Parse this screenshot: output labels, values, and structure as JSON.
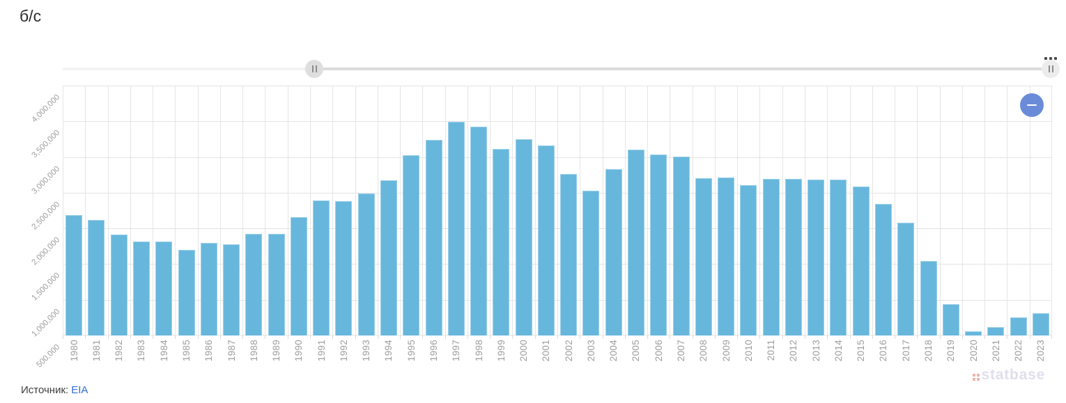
{
  "page": {
    "title": "б/с",
    "source_label": "Источник:",
    "source_link": "EIA",
    "watermark": "statbase"
  },
  "scrollbar": {
    "start_pct": 25.4,
    "end_pct": 100,
    "left_grip_glyph": "||",
    "right_grip_glyph": "||",
    "menu_icon": "three-dots-menu"
  },
  "controls": {
    "zoom_out_glyph": "—"
  },
  "colors": {
    "bar": "#67b7dc",
    "bar_border": "#9bd0ea",
    "grid": "#e3e3e3",
    "axis_label": "#9d9d9d",
    "link": "#2e6fd1",
    "zoom_out_button": "#6a8bd8",
    "watermark_text": "#dfdfec",
    "watermark_icon": "#e4756c"
  },
  "chart_data": {
    "type": "bar",
    "title": "б/с",
    "xlabel": "",
    "ylabel": "б/с",
    "grid": true,
    "legend": "none",
    "ylim": [
      500000,
      4000000
    ],
    "ytick_step": 500000,
    "ytick_labels": [
      "500,000",
      "1,000,000",
      "1,500,000",
      "2,000,000",
      "2,500,000",
      "3,000,000",
      "3,500,000",
      "4,000,000"
    ],
    "categories": [
      "1980",
      "1981",
      "1982",
      "1983",
      "1984",
      "1985",
      "1986",
      "1987",
      "1988",
      "1989",
      "1990",
      "1991",
      "1992",
      "1993",
      "1994",
      "1995",
      "1996",
      "1997",
      "1998",
      "1999",
      "2000",
      "2001",
      "2002",
      "2003",
      "2004",
      "2005",
      "2006",
      "2007",
      "2008",
      "2009",
      "2010",
      "2011",
      "2012",
      "2013",
      "2014",
      "2015",
      "2016",
      "2017",
      "2018",
      "2019",
      "2020",
      "2021",
      "2022",
      "2023"
    ],
    "values": [
      2190000,
      2120000,
      1915000,
      1820000,
      1820000,
      1700000,
      1800000,
      1775000,
      1925000,
      1920000,
      2155000,
      2390000,
      2385000,
      2490000,
      2675000,
      3030000,
      3235000,
      3495000,
      3425000,
      3110000,
      3245000,
      3165000,
      2765000,
      2525000,
      2835000,
      3100000,
      3035000,
      3010000,
      2700000,
      2710000,
      2610000,
      2690000,
      2690000,
      2685000,
      2685000,
      2590000,
      2340000,
      2075000,
      1545000,
      940000,
      560000,
      620000,
      755000,
      815000
    ],
    "source": "EIA"
  }
}
